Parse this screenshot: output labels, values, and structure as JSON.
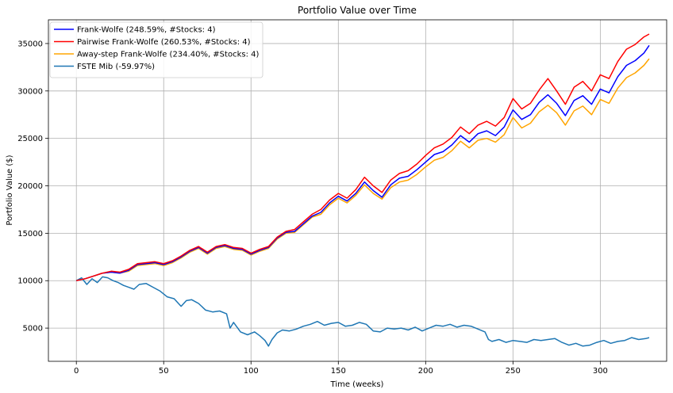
{
  "chart_data": {
    "type": "line",
    "title": "Portfolio Value over Time",
    "xlabel": "Time (weeks)",
    "ylabel": "Portfolio Value ($)",
    "xlim": [
      -16,
      338
    ],
    "ylim": [
      1500,
      37500
    ],
    "xticks": [
      0,
      50,
      100,
      150,
      200,
      250,
      300
    ],
    "yticks": [
      5000,
      10000,
      15000,
      20000,
      25000,
      30000,
      35000
    ],
    "grid": true,
    "legend_position": "top-left",
    "series": [
      {
        "name": "Frank-Wolfe (248.59%, #Stocks: 4)",
        "color": "#0000ff",
        "x": [
          0,
          5,
          10,
          15,
          20,
          25,
          30,
          35,
          40,
          45,
          50,
          55,
          60,
          65,
          70,
          75,
          80,
          85,
          90,
          95,
          100,
          105,
          110,
          115,
          120,
          125,
          130,
          135,
          140,
          145,
          150,
          155,
          160,
          165,
          170,
          175,
          180,
          185,
          190,
          195,
          200,
          205,
          210,
          215,
          220,
          225,
          230,
          235,
          240,
          245,
          250,
          255,
          260,
          265,
          270,
          275,
          280,
          285,
          290,
          295,
          300,
          305,
          310,
          315,
          320,
          325,
          328
        ],
        "y": [
          10000,
          10200,
          10500,
          10800,
          10900,
          10800,
          11100,
          11700,
          11800,
          11900,
          11700,
          12000,
          12500,
          13100,
          13500,
          12900,
          13500,
          13700,
          13400,
          13300,
          12800,
          13200,
          13500,
          14500,
          15100,
          15200,
          16000,
          16800,
          17200,
          18200,
          18900,
          18400,
          19200,
          20400,
          19500,
          18800,
          20100,
          20800,
          21000,
          21700,
          22500,
          23300,
          23600,
          24300,
          25300,
          24600,
          25500,
          25800,
          25300,
          26200,
          28000,
          27000,
          27500,
          28800,
          29600,
          28700,
          27400,
          29000,
          29500,
          28600,
          30200,
          29800,
          31500,
          32700,
          33200,
          34000,
          34800
        ]
      },
      {
        "name": "Pairwise Frank-Wolfe (260.53%, #Stocks: 4)",
        "color": "#ff0000",
        "x": [
          0,
          5,
          10,
          15,
          20,
          25,
          30,
          35,
          40,
          45,
          50,
          55,
          60,
          65,
          70,
          75,
          80,
          85,
          90,
          95,
          100,
          105,
          110,
          115,
          120,
          125,
          130,
          135,
          140,
          145,
          150,
          155,
          160,
          165,
          170,
          175,
          180,
          185,
          190,
          195,
          200,
          205,
          210,
          215,
          220,
          225,
          230,
          235,
          240,
          245,
          250,
          255,
          260,
          265,
          270,
          275,
          280,
          285,
          290,
          295,
          300,
          305,
          310,
          315,
          320,
          325,
          328
        ],
        "y": [
          10000,
          10200,
          10500,
          10800,
          11000,
          10900,
          11200,
          11800,
          11900,
          12000,
          11800,
          12100,
          12600,
          13200,
          13600,
          13000,
          13600,
          13800,
          13500,
          13400,
          12900,
          13300,
          13600,
          14600,
          15200,
          15400,
          16200,
          17000,
          17500,
          18500,
          19200,
          18700,
          19600,
          20900,
          20000,
          19300,
          20600,
          21300,
          21600,
          22300,
          23200,
          24000,
          24400,
          25100,
          26200,
          25500,
          26400,
          26800,
          26300,
          27200,
          29200,
          28100,
          28700,
          30100,
          31300,
          30000,
          28600,
          30400,
          31000,
          30000,
          31700,
          31300,
          33100,
          34400,
          34900,
          35700,
          36000
        ]
      },
      {
        "name": "Away-step Frank-Wolfe (234.40%, #Stocks: 4)",
        "color": "#ffa500",
        "x": [
          0,
          5,
          10,
          15,
          20,
          25,
          30,
          35,
          40,
          45,
          50,
          55,
          60,
          65,
          70,
          75,
          80,
          85,
          90,
          95,
          100,
          105,
          110,
          115,
          120,
          125,
          130,
          135,
          140,
          145,
          150,
          155,
          160,
          165,
          170,
          175,
          180,
          185,
          190,
          195,
          200,
          205,
          210,
          215,
          220,
          225,
          230,
          235,
          240,
          245,
          250,
          255,
          260,
          265,
          270,
          275,
          280,
          285,
          290,
          295,
          300,
          305,
          310,
          315,
          320,
          325,
          328
        ],
        "y": [
          10000,
          10200,
          10500,
          10800,
          10900,
          10800,
          11000,
          11600,
          11700,
          11800,
          11600,
          11900,
          12400,
          13000,
          13400,
          12800,
          13400,
          13600,
          13300,
          13200,
          12700,
          13100,
          13400,
          14400,
          15000,
          15100,
          15900,
          16700,
          17000,
          18000,
          18700,
          18200,
          19000,
          20100,
          19200,
          18600,
          19800,
          20400,
          20600,
          21200,
          22000,
          22700,
          23000,
          23700,
          24700,
          24000,
          24800,
          25000,
          24600,
          25400,
          27200,
          26100,
          26600,
          27800,
          28500,
          27700,
          26400,
          27900,
          28400,
          27500,
          29100,
          28700,
          30300,
          31400,
          31900,
          32700,
          33400
        ]
      },
      {
        "name": "FSTE Mib (-59.97%)",
        "color": "#1f77b4",
        "x": [
          0,
          3,
          6,
          9,
          12,
          15,
          18,
          21,
          24,
          27,
          30,
          33,
          36,
          40,
          44,
          48,
          52,
          56,
          60,
          63,
          66,
          70,
          74,
          78,
          82,
          86,
          88,
          90,
          94,
          98,
          102,
          105,
          108,
          110,
          112,
          115,
          118,
          122,
          126,
          130,
          134,
          138,
          142,
          146,
          150,
          154,
          158,
          162,
          166,
          170,
          174,
          178,
          182,
          186,
          190,
          194,
          198,
          202,
          206,
          210,
          214,
          218,
          222,
          226,
          230,
          234,
          236,
          238,
          242,
          246,
          250,
          254,
          258,
          262,
          266,
          270,
          274,
          278,
          282,
          286,
          290,
          294,
          298,
          302,
          306,
          310,
          314,
          318,
          322,
          326,
          328
        ],
        "y": [
          10000,
          10300,
          9600,
          10200,
          9800,
          10400,
          10300,
          10000,
          9800,
          9500,
          9300,
          9100,
          9600,
          9700,
          9300,
          8900,
          8300,
          8100,
          7300,
          7900,
          8000,
          7600,
          6900,
          6700,
          6800,
          6500,
          5000,
          5600,
          4600,
          4300,
          4600,
          4200,
          3700,
          3100,
          3800,
          4500,
          4800,
          4700,
          4900,
          5200,
          5400,
          5700,
          5300,
          5500,
          5600,
          5200,
          5300,
          5600,
          5400,
          4700,
          4600,
          5000,
          4900,
          5000,
          4800,
          5100,
          4700,
          5000,
          5300,
          5200,
          5400,
          5100,
          5300,
          5200,
          4900,
          4600,
          3800,
          3600,
          3800,
          3500,
          3700,
          3600,
          3500,
          3800,
          3700,
          3800,
          3900,
          3500,
          3200,
          3400,
          3100,
          3200,
          3500,
          3700,
          3400,
          3600,
          3700,
          4000,
          3800,
          3900,
          4000
        ]
      }
    ]
  }
}
